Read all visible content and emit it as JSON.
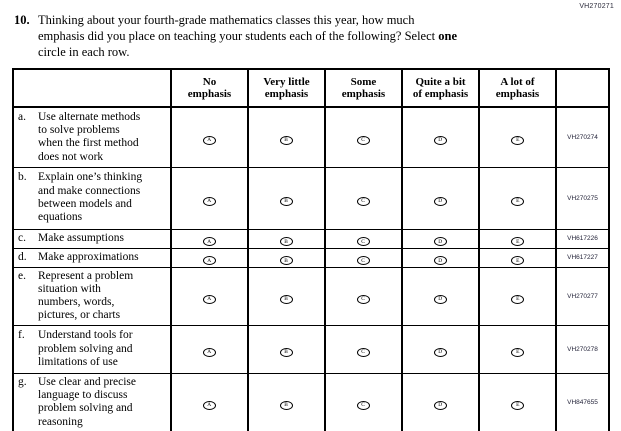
{
  "page": {
    "form_code": "VH270271"
  },
  "question": {
    "number": "10.",
    "text_before_bold": "Thinking about your fourth-grade mathematics classes this year, how much\nemphasis did you place on teaching your students each of the following? Select ",
    "bold_word": "one",
    "text_after_bold": "\ncircle in each row."
  },
  "table": {
    "column_headers": [
      "No\nemphasis",
      "Very little\nemphasis",
      "Some\nemphasis",
      "Quite a bit\nof emphasis",
      "A lot of\nemphasis"
    ],
    "option_letters": [
      "A",
      "B",
      "C",
      "D",
      "E"
    ],
    "rows": [
      {
        "item_letter": "a.",
        "text": "Use alternate methods\nto solve problems\nwhen the first method\ndoes not work",
        "code": "VH270274"
      },
      {
        "item_letter": "b.",
        "text": "Explain one’s thinking\nand make connections\nbetween models and\nequations",
        "code": "VH270275"
      },
      {
        "item_letter": "c.",
        "text": "Make assumptions",
        "code": "VH617226"
      },
      {
        "item_letter": "d.",
        "text": "Make approximations",
        "code": "VH617227"
      },
      {
        "item_letter": "e.",
        "text": "Represent a problem\nsituation with\nnumbers, words,\npictures, or charts",
        "code": "VH270277"
      },
      {
        "item_letter": "f.",
        "text": "Understand tools for\nproblem solving and\nlimitations of use",
        "code": "VH270278"
      },
      {
        "item_letter": "g.",
        "text": "Use clear and precise\nlanguage to discuss\nproblem solving and\nreasoning",
        "code": "VH847655"
      }
    ]
  }
}
